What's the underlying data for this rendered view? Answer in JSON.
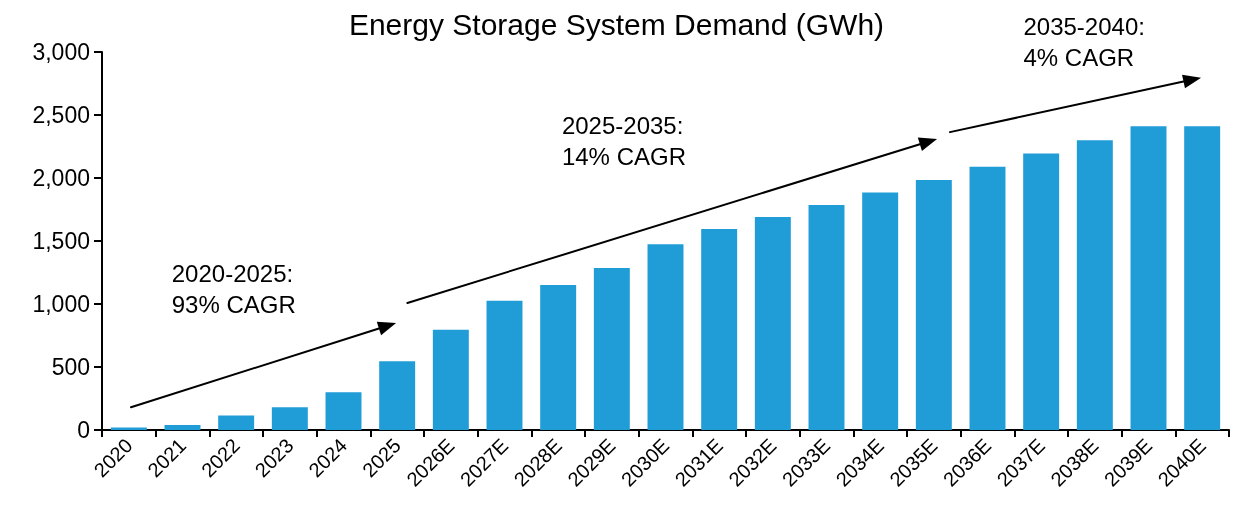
{
  "chart_data": {
    "type": "bar",
    "title": "Energy Storage System Demand (GWh)",
    "categories": [
      "2020",
      "2021",
      "2022",
      "2023",
      "2024",
      "2025",
      "2026E",
      "2027E",
      "2028E",
      "2029E",
      "2030E",
      "2031E",
      "2032E",
      "2033E",
      "2034E",
      "2035E",
      "2036E",
      "2037E",
      "2038E",
      "2039E",
      "2040E"
    ],
    "values": [
      20,
      40,
      115,
      180,
      300,
      545,
      795,
      1025,
      1150,
      1285,
      1475,
      1595,
      1690,
      1785,
      1885,
      1985,
      2090,
      2195,
      2300,
      2410,
      2410
    ],
    "color": "#209cd7",
    "ylim": [
      0,
      3000
    ],
    "yticks": [
      0,
      500,
      {
        "value": 1000,
        "label": "1,000"
      },
      {
        "value": 1500,
        "label": "1,500"
      },
      {
        "value": 2000,
        "label": "2,000"
      },
      {
        "value": 2500,
        "label": "2,500"
      },
      {
        "value": 3000,
        "label": "3,000"
      }
    ],
    "annotations": [
      "2020-2025:\n93% CAGR",
      "2025-2035:\n14% CAGR",
      "2035-2040:\n4% CAGR"
    ]
  }
}
